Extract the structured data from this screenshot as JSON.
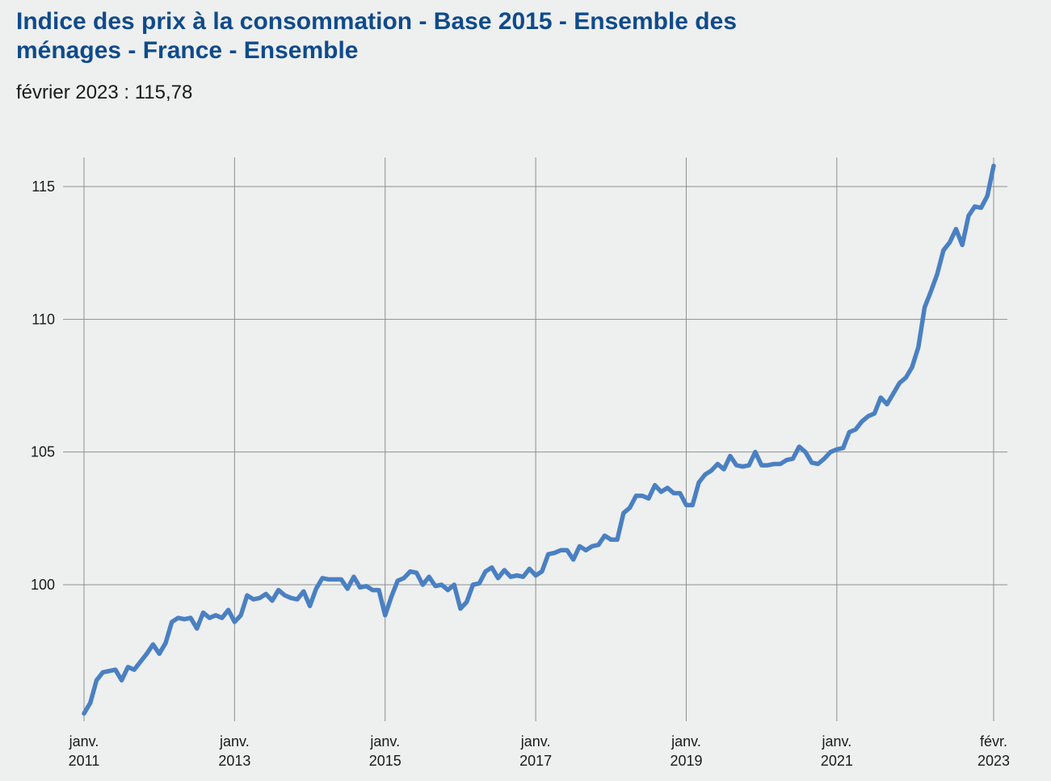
{
  "chart_data": {
    "type": "line",
    "title": "Indice des prix à la consommation - Base 2015 - Ensemble des ménages - France - Ensemble",
    "subtitle": "février 2023 : 115,78",
    "xlabel": "",
    "ylabel": "",
    "ylim": [
      95,
      116
    ],
    "yticks": [
      100,
      105,
      110,
      115
    ],
    "ytick_labels": [
      "100",
      "105",
      "110",
      "115"
    ],
    "x_start": "2011-01",
    "x_end": "2023-02",
    "xticks": [
      {
        "index": 0,
        "line1": "janv.",
        "line2": "2011"
      },
      {
        "index": 24,
        "line1": "janv.",
        "line2": "2013"
      },
      {
        "index": 48,
        "line1": "janv.",
        "line2": "2015"
      },
      {
        "index": 72,
        "line1": "janv.",
        "line2": "2017"
      },
      {
        "index": 96,
        "line1": "janv.",
        "line2": "2019"
      },
      {
        "index": 120,
        "line1": "janv.",
        "line2": "2021"
      },
      {
        "index": 145,
        "line1": "févr.",
        "line2": "2023"
      }
    ],
    "grid": true,
    "legend": "none",
    "series": [
      {
        "name": "Ensemble",
        "color": "#4a80c2",
        "values": [
          95.15,
          95.55,
          96.4,
          96.7,
          96.75,
          96.8,
          96.4,
          96.9,
          96.8,
          97.1,
          97.4,
          97.75,
          97.4,
          97.8,
          98.6,
          98.75,
          98.7,
          98.75,
          98.35,
          98.95,
          98.75,
          98.85,
          98.75,
          99.05,
          98.6,
          98.85,
          99.6,
          99.45,
          99.5,
          99.65,
          99.4,
          99.8,
          99.6,
          99.5,
          99.45,
          99.75,
          99.2,
          99.85,
          100.25,
          100.2,
          100.2,
          100.2,
          99.85,
          100.3,
          99.9,
          99.95,
          99.8,
          99.8,
          98.85,
          99.55,
          100.15,
          100.25,
          100.5,
          100.45,
          100.0,
          100.3,
          99.95,
          100.0,
          99.8,
          100.0,
          99.1,
          99.35,
          100.0,
          100.05,
          100.5,
          100.65,
          100.25,
          100.55,
          100.3,
          100.35,
          100.3,
          100.6,
          100.35,
          100.5,
          101.15,
          101.2,
          101.3,
          101.3,
          100.95,
          101.45,
          101.3,
          101.45,
          101.5,
          101.85,
          101.7,
          101.7,
          102.7,
          102.9,
          103.35,
          103.35,
          103.25,
          103.75,
          103.5,
          103.65,
          103.45,
          103.45,
          103.0,
          103.0,
          103.85,
          104.15,
          104.3,
          104.55,
          104.35,
          104.85,
          104.5,
          104.45,
          104.5,
          105.0,
          104.5,
          104.5,
          104.55,
          104.55,
          104.7,
          104.75,
          105.2,
          105.0,
          104.6,
          104.55,
          104.75,
          105.0,
          105.1,
          105.15,
          105.75,
          105.85,
          106.15,
          106.35,
          106.45,
          107.05,
          106.8,
          107.2,
          107.6,
          107.8,
          108.2,
          108.95,
          110.45,
          111.05,
          111.7,
          112.6,
          112.9,
          113.4,
          112.8,
          113.9,
          114.25,
          114.2,
          114.65,
          115.78
        ]
      }
    ]
  }
}
